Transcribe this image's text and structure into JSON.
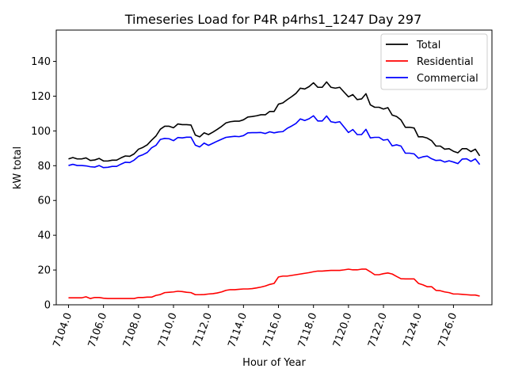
{
  "chart_data": {
    "type": "line",
    "title": "Timeseries Load for P4R p4rhs1_1247  Day 297",
    "xlabel": "Hour of Year",
    "ylabel": "kW total",
    "xlim": [
      7103.3,
      7128.2
    ],
    "ylim": [
      0,
      158
    ],
    "x_ticks": [
      7104,
      7106,
      7108,
      7110,
      7112,
      7114,
      7116,
      7118,
      7120,
      7122,
      7124,
      7126
    ],
    "x_tick_labels": [
      "7104.0",
      "7106.0",
      "7108.0",
      "7110.0",
      "7112.0",
      "7114.0",
      "7116.0",
      "7118.0",
      "7120.0",
      "7122.0",
      "7124.0",
      "7126.0"
    ],
    "y_ticks": [
      0,
      20,
      40,
      60,
      80,
      100,
      120,
      140
    ],
    "y_tick_labels": [
      "0",
      "20",
      "40",
      "60",
      "80",
      "100",
      "120",
      "140"
    ],
    "legend_position": "top-right",
    "grid": false,
    "x": [
      7104.0,
      7104.25,
      7104.5,
      7104.75,
      7105.0,
      7105.25,
      7105.5,
      7105.75,
      7106.0,
      7106.25,
      7106.5,
      7106.75,
      7107.0,
      7107.25,
      7107.5,
      7107.75,
      7108.0,
      7108.25,
      7108.5,
      7108.75,
      7109.0,
      7109.25,
      7109.5,
      7109.75,
      7110.0,
      7110.25,
      7110.5,
      7110.75,
      7111.0,
      7111.25,
      7111.5,
      7111.75,
      7112.0,
      7112.25,
      7112.5,
      7112.75,
      7113.0,
      7113.25,
      7113.5,
      7113.75,
      7114.0,
      7114.25,
      7114.5,
      7114.75,
      7115.0,
      7115.25,
      7115.5,
      7115.75,
      7116.0,
      7116.25,
      7116.5,
      7116.75,
      7117.0,
      7117.25,
      7117.5,
      7117.75,
      7118.0,
      7118.25,
      7118.5,
      7118.75,
      7119.0,
      7119.25,
      7119.5,
      7119.75,
      7120.0,
      7120.25,
      7120.5,
      7120.75,
      7121.0,
      7121.25,
      7121.5,
      7121.75,
      7122.0,
      7122.25,
      7122.5,
      7122.75,
      7123.0,
      7123.25,
      7123.5,
      7123.75,
      7124.0,
      7124.25,
      7124.5,
      7124.75,
      7125.0,
      7125.25,
      7125.5,
      7125.75,
      7126.0,
      7126.25,
      7126.5,
      7126.75,
      7127.0,
      7127.25,
      7127.5
    ],
    "series": [
      {
        "name": "Total",
        "color": "#000000",
        "values": [
          83.9,
          84.7,
          83.9,
          83.9,
          84.5,
          83.0,
          83.3,
          84.2,
          82.7,
          82.7,
          83.2,
          83.2,
          84.5,
          85.6,
          85.4,
          86.8,
          89.5,
          90.5,
          92.0,
          94.7,
          97.1,
          101.0,
          102.7,
          102.7,
          101.8,
          104.0,
          103.6,
          103.6,
          103.4,
          97.6,
          96.6,
          98.9,
          97.9,
          99.3,
          100.9,
          102.6,
          104.6,
          105.3,
          105.6,
          105.6,
          106.4,
          108.0,
          108.3,
          108.7,
          109.3,
          109.3,
          111.2,
          111.2,
          115.4,
          116.1,
          118.0,
          119.7,
          121.6,
          124.6,
          124.1,
          125.5,
          127.7,
          125.1,
          125.1,
          128.2,
          125.1,
          124.6,
          125.1,
          122.3,
          119.6,
          120.9,
          118.0,
          118.4,
          121.4,
          115.0,
          113.6,
          113.6,
          112.6,
          113.4,
          109.1,
          108.3,
          106.3,
          102.1,
          102.1,
          101.7,
          96.6,
          96.6,
          95.9,
          94.4,
          91.3,
          91.3,
          89.5,
          89.8,
          88.3,
          87.4,
          89.8,
          89.8,
          88.1,
          89.5,
          85.7
        ]
      },
      {
        "name": "Residential",
        "color": "#ff0000",
        "values": [
          4.0,
          4.0,
          4.0,
          4.0,
          4.6,
          3.6,
          4.2,
          4.2,
          3.8,
          3.6,
          3.6,
          3.6,
          3.6,
          3.6,
          3.6,
          3.6,
          4.2,
          4.2,
          4.4,
          4.4,
          5.4,
          5.9,
          7.0,
          7.2,
          7.4,
          7.8,
          7.6,
          7.2,
          7.0,
          5.8,
          5.8,
          5.9,
          6.2,
          6.4,
          6.8,
          7.4,
          8.3,
          8.7,
          8.7,
          8.9,
          9.1,
          9.1,
          9.3,
          9.7,
          10.2,
          10.8,
          11.7,
          12.3,
          16.0,
          16.5,
          16.5,
          16.9,
          17.3,
          17.7,
          18.1,
          18.5,
          19.0,
          19.4,
          19.4,
          19.6,
          19.8,
          19.8,
          19.8,
          20.1,
          20.5,
          20.1,
          20.1,
          20.5,
          20.5,
          19.0,
          17.3,
          17.3,
          17.9,
          18.3,
          17.7,
          16.3,
          15.0,
          14.9,
          14.9,
          14.9,
          12.3,
          11.5,
          10.4,
          10.4,
          8.3,
          8.1,
          7.4,
          7.0,
          6.2,
          6.2,
          6.0,
          5.8,
          5.6,
          5.6,
          5.0
        ]
      },
      {
        "name": "Commercial",
        "color": "#0000ff",
        "values": [
          80.1,
          80.8,
          80.1,
          80.1,
          79.9,
          79.4,
          79.2,
          80.1,
          78.9,
          79.1,
          79.6,
          79.6,
          80.9,
          82.0,
          81.8,
          83.2,
          85.4,
          86.3,
          87.6,
          90.3,
          91.7,
          95.1,
          95.7,
          95.5,
          94.4,
          96.2,
          96.0,
          96.4,
          96.4,
          91.8,
          90.8,
          93.0,
          91.7,
          92.9,
          94.1,
          95.2,
          96.3,
          96.6,
          96.9,
          96.7,
          97.3,
          98.9,
          99.0,
          99.0,
          99.1,
          98.5,
          99.5,
          98.9,
          99.4,
          99.6,
          101.5,
          102.8,
          104.3,
          106.9,
          106.0,
          107.0,
          108.7,
          105.7,
          105.7,
          108.6,
          105.3,
          104.8,
          105.3,
          102.2,
          99.1,
          100.8,
          97.9,
          97.9,
          100.9,
          96.0,
          96.3,
          96.3,
          94.7,
          95.1,
          91.4,
          92.0,
          91.3,
          87.2,
          87.2,
          86.8,
          84.3,
          85.1,
          85.5,
          84.0,
          83.0,
          83.2,
          82.1,
          82.8,
          82.1,
          81.2,
          83.8,
          84.0,
          82.5,
          83.9,
          80.7
        ]
      }
    ]
  }
}
